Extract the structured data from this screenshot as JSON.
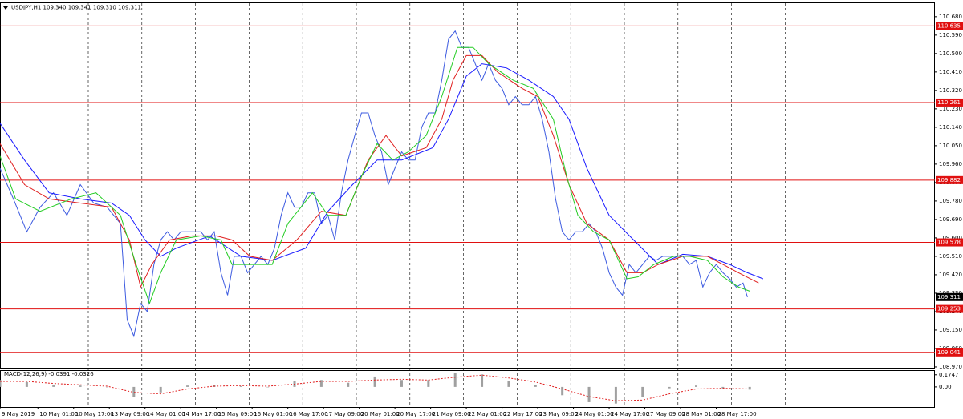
{
  "chart_data": [
    {
      "type": "line",
      "title": "USDJPY,H1  109.340 109.341 109.310 109.311",
      "xlim": [
        0,
        419
      ],
      "xticks": [
        {
          "value": 0,
          "label": "9 May 2019"
        },
        {
          "value": 17,
          "label": "10 May 01:00"
        },
        {
          "value": 33,
          "label": "10 May 17:00"
        },
        {
          "value": 49,
          "label": "13 May 09:00"
        },
        {
          "value": 65,
          "label": "14 May 01:00"
        },
        {
          "value": 81,
          "label": "14 May 17:00"
        },
        {
          "value": 97,
          "label": "15 May 09:00"
        },
        {
          "value": 113,
          "label": "16 May 01:00"
        },
        {
          "value": 129,
          "label": "16 May 17:00"
        },
        {
          "value": 145,
          "label": "17 May 09:00"
        },
        {
          "value": 161,
          "label": "20 May 01:00"
        },
        {
          "value": 177,
          "label": "20 May 17:00"
        },
        {
          "value": 193,
          "label": "21 May 09:00"
        },
        {
          "value": 209,
          "label": "22 May 01:00"
        },
        {
          "value": 225,
          "label": "22 May 17:00"
        },
        {
          "value": 241,
          "label": "23 May 09:00"
        },
        {
          "value": 257,
          "label": "24 May 01:00"
        },
        {
          "value": 273,
          "label": "24 May 17:00"
        },
        {
          "value": 289,
          "label": "27 May 09:00"
        },
        {
          "value": 305,
          "label": "28 May 01:00"
        },
        {
          "value": 321,
          "label": "28 May 17:00"
        }
      ],
      "ylim": [
        108.962,
        110.742
      ],
      "yticks": [
        {
          "value": 110.68,
          "label": "110.680"
        },
        {
          "value": 110.59,
          "label": "110.590"
        },
        {
          "value": 110.5,
          "label": "110.500"
        },
        {
          "value": 110.41,
          "label": "110.410"
        },
        {
          "value": 110.32,
          "label": "110.320"
        },
        {
          "value": 110.23,
          "label": "110.230"
        },
        {
          "value": 110.14,
          "label": "110.140"
        },
        {
          "value": 110.05,
          "label": "110.050"
        },
        {
          "value": 109.96,
          "label": "109.960"
        },
        {
          "value": 109.87,
          "label": "109.870"
        },
        {
          "value": 109.78,
          "label": "109.780"
        },
        {
          "value": 109.69,
          "label": "109.690"
        },
        {
          "value": 109.6,
          "label": "109.600"
        },
        {
          "value": 109.51,
          "label": "109.510"
        },
        {
          "value": 109.42,
          "label": "109.420"
        },
        {
          "value": 109.33,
          "label": "109.330"
        },
        {
          "value": 109.24,
          "label": "109.240"
        },
        {
          "value": 109.15,
          "label": "109.150"
        },
        {
          "value": 109.06,
          "label": "109.060"
        },
        {
          "value": 108.97,
          "label": "108.970"
        }
      ],
      "levels": [
        110.635,
        110.261,
        109.882,
        109.578,
        109.253,
        109.041
      ],
      "level_color": "#e01010",
      "last": 109.311,
      "series": [
        {
          "color": "#3d5be0",
          "x": [
            0,
            6,
            12,
            18,
            24,
            30,
            36,
            42,
            48,
            54,
            57,
            60,
            63,
            66,
            69,
            72,
            75,
            78,
            81,
            84,
            87,
            90,
            93,
            96,
            99,
            102,
            105,
            108,
            111,
            114,
            117,
            120,
            123,
            126,
            129,
            132,
            135,
            138,
            141,
            144,
            147,
            150,
            153,
            156,
            159,
            162,
            165,
            168,
            171,
            174,
            177,
            180,
            183,
            186,
            189,
            192,
            195,
            198,
            201,
            204,
            207,
            210,
            213,
            216,
            219,
            222,
            225,
            228,
            231,
            234,
            237,
            240,
            243,
            246,
            249,
            252,
            255,
            258,
            261,
            264,
            267,
            270,
            273,
            276,
            279,
            282,
            285,
            288,
            291,
            294,
            297,
            300,
            303,
            306,
            309,
            312,
            315,
            318,
            321,
            324,
            327,
            330,
            333,
            335
          ],
          "values": [
            109.94,
            109.79,
            109.63,
            109.75,
            109.82,
            109.71,
            109.86,
            109.77,
            109.75,
            109.67,
            109.2,
            109.12,
            109.28,
            109.24,
            109.47,
            109.59,
            109.63,
            109.59,
            109.63,
            109.63,
            109.63,
            109.63,
            109.59,
            109.63,
            109.43,
            109.32,
            109.51,
            109.51,
            109.43,
            109.47,
            109.51,
            109.47,
            109.55,
            109.71,
            109.82,
            109.75,
            109.75,
            109.82,
            109.82,
            109.67,
            109.71,
            109.59,
            109.82,
            109.98,
            110.1,
            110.21,
            110.21,
            110.1,
            110.02,
            109.86,
            109.94,
            110.02,
            109.98,
            109.98,
            110.14,
            110.21,
            110.21,
            110.37,
            110.57,
            110.61,
            110.53,
            110.53,
            110.45,
            110.37,
            110.45,
            110.37,
            110.33,
            110.25,
            110.29,
            110.25,
            110.25,
            110.29,
            110.18,
            110.02,
            109.79,
            109.63,
            109.59,
            109.63,
            109.63,
            109.67,
            109.63,
            109.55,
            109.43,
            109.36,
            109.32,
            109.47,
            109.43,
            109.47,
            109.51,
            109.49,
            109.51,
            109.51,
            109.51,
            109.51,
            109.47,
            109.49,
            109.36,
            109.43,
            109.47,
            109.43,
            109.4,
            109.36,
            109.38,
            109.311
          ]
        },
        {
          "color": "#1a1aff",
          "x": [
            0,
            11,
            22,
            36,
            50,
            58,
            65,
            72,
            79,
            94,
            108,
            122,
            137,
            147,
            158,
            169,
            180,
            194,
            201,
            209,
            216,
            227,
            237,
            248,
            255,
            263,
            273,
            284,
            295,
            306,
            317,
            327,
            335,
            342
          ],
          "values": [
            110.16,
            109.98,
            109.82,
            109.79,
            109.77,
            109.71,
            109.59,
            109.51,
            109.55,
            109.61,
            109.51,
            109.49,
            109.55,
            109.73,
            109.86,
            109.98,
            109.98,
            110.04,
            110.18,
            110.39,
            110.45,
            110.43,
            110.37,
            110.29,
            110.18,
            109.94,
            109.71,
            109.59,
            109.47,
            109.52,
            109.51,
            109.47,
            109.43,
            109.4
          ]
        },
        {
          "color": "#e02020",
          "x": [
            0,
            11,
            22,
            36,
            50,
            58,
            63,
            68,
            76,
            86,
            97,
            104,
            112,
            122,
            133,
            144,
            155,
            165,
            173,
            180,
            191,
            198,
            203,
            209,
            216,
            223,
            234,
            241,
            248,
            255,
            263,
            273,
            281,
            288,
            295,
            306,
            317,
            324,
            331,
            340
          ],
          "values": [
            110.06,
            109.86,
            109.79,
            109.77,
            109.75,
            109.59,
            109.36,
            109.47,
            109.59,
            109.61,
            109.61,
            109.59,
            109.51,
            109.49,
            109.59,
            109.73,
            109.71,
            109.98,
            110.1,
            110.0,
            110.04,
            110.18,
            110.37,
            110.49,
            110.49,
            110.41,
            110.33,
            110.29,
            110.1,
            109.86,
            109.67,
            109.59,
            109.43,
            109.43,
            109.47,
            109.51,
            109.51,
            109.47,
            109.43,
            109.38
          ]
        },
        {
          "color": "#22cc22",
          "x": [
            0,
            7,
            18,
            32,
            43,
            54,
            61,
            67,
            72,
            79,
            90,
            99,
            104,
            112,
            122,
            129,
            140,
            147,
            155,
            162,
            169,
            176,
            183,
            191,
            198,
            205,
            212,
            219,
            230,
            239,
            248,
            254,
            259,
            266,
            273,
            281,
            286,
            293,
            302,
            309,
            317,
            324,
            331,
            336
          ],
          "values": [
            110.0,
            109.79,
            109.73,
            109.79,
            109.82,
            109.71,
            109.47,
            109.28,
            109.43,
            109.59,
            109.61,
            109.59,
            109.47,
            109.47,
            109.47,
            109.67,
            109.82,
            109.71,
            109.71,
            109.9,
            110.06,
            109.98,
            110.02,
            110.1,
            110.29,
            110.53,
            110.53,
            110.45,
            110.37,
            110.33,
            110.18,
            109.9,
            109.71,
            109.63,
            109.59,
            109.4,
            109.41,
            109.47,
            109.51,
            109.51,
            109.49,
            109.41,
            109.36,
            109.34
          ]
        }
      ]
    },
    {
      "type": "bar",
      "title": "MACD(12,26,9) -0.0391 -0.0326",
      "ylim": [
        -0.29,
        0.23
      ],
      "yticks": [
        0.1747,
        {
          "value": 0,
          "label": "0.00"
        }
      ],
      "series": [
        {
          "color": "#a0a0a0",
          "x": [
            0,
            12,
            24,
            36,
            48,
            60,
            72,
            84,
            96,
            108,
            120,
            132,
            144,
            156,
            168,
            180,
            192,
            204,
            216,
            228,
            240,
            252,
            264,
            276,
            288,
            300,
            312,
            324,
            336
          ],
          "values": [
            0.1,
            0.07,
            0.03,
            0.02,
            0.0,
            -0.15,
            -0.08,
            0.02,
            0.03,
            0.01,
            0.0,
            0.08,
            0.1,
            0.06,
            0.15,
            0.1,
            0.1,
            0.2,
            0.18,
            0.08,
            0.03,
            -0.12,
            -0.22,
            -0.24,
            -0.15,
            -0.02,
            0.02,
            -0.02,
            -0.04
          ]
        },
        {
          "color": "#e02020",
          "dashed": true,
          "x": [
            0,
            12,
            24,
            36,
            48,
            60,
            72,
            84,
            96,
            108,
            120,
            132,
            144,
            156,
            168,
            180,
            192,
            204,
            216,
            228,
            240,
            252,
            264,
            276,
            288,
            300,
            312,
            324,
            336
          ],
          "values": [
            0.08,
            0.08,
            0.05,
            0.03,
            0.01,
            -0.08,
            -0.1,
            -0.03,
            0.01,
            0.02,
            0.01,
            0.04,
            0.08,
            0.08,
            0.1,
            0.11,
            0.1,
            0.14,
            0.17,
            0.13,
            0.07,
            -0.03,
            -0.14,
            -0.2,
            -0.19,
            -0.1,
            -0.03,
            -0.02,
            -0.03
          ]
        }
      ]
    }
  ]
}
